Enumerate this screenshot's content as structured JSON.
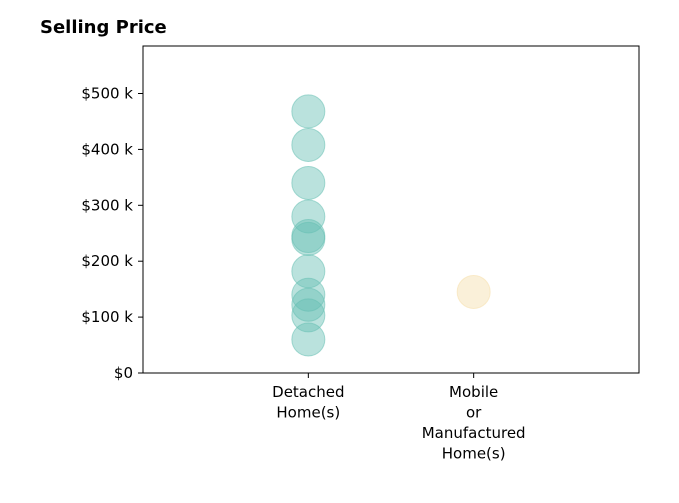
{
  "chart_data": {
    "type": "scatter",
    "title": "Selling Price",
    "xlabel": "",
    "ylabel": "",
    "categories": [
      [
        "Detached",
        "Home(s)"
      ],
      [
        "Mobile",
        "or",
        "Manufactured",
        "Home(s)"
      ]
    ],
    "y_ticks": [
      {
        "value": 0,
        "label": "$0"
      },
      {
        "value": 100000,
        "label": "$100 k"
      },
      {
        "value": 200000,
        "label": "$200 k"
      },
      {
        "value": 300000,
        "label": "$300 k"
      },
      {
        "value": 400000,
        "label": "$400 k"
      },
      {
        "value": 500000,
        "label": "$500 k"
      }
    ],
    "ylim": [
      0,
      585000
    ],
    "grid": false,
    "series": [
      {
        "category_index": 0,
        "color": "#66bfb3",
        "values": [
          468000,
          408000,
          340000,
          280000,
          245000,
          240000,
          182000,
          140000,
          122000,
          103000,
          60000
        ]
      },
      {
        "category_index": 1,
        "color": "#f5deaa",
        "values": [
          145000
        ]
      }
    ]
  }
}
